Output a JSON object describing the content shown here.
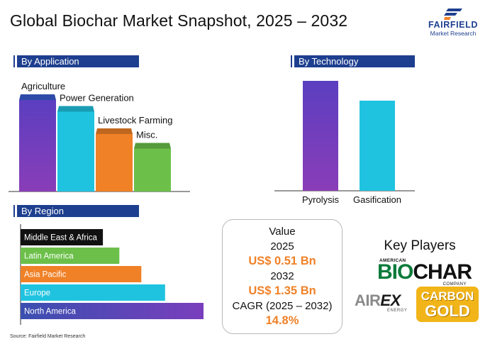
{
  "title": "Global Biochar Market Snapshot, 2025 – 2032",
  "logo": {
    "brand": "FAIRFIELD",
    "tagline": "Market Research"
  },
  "sections": {
    "application": "By Application",
    "technology": "By Technology",
    "region": "By Region"
  },
  "colors": {
    "navy": "#1e3f8f",
    "purple": "#6a3fbd",
    "cyan": "#1fc3e0",
    "orange": "#f08127",
    "green": "#6cc04a",
    "black": "#111111"
  },
  "chart_data": [
    {
      "type": "bar",
      "section": "By Application",
      "categories": [
        "Agriculture",
        "Power Generation",
        "Livestock Farming",
        "Misc."
      ],
      "values": [
        100,
        88,
        65,
        50
      ],
      "colors": [
        "purple",
        "cyan",
        "orange",
        "green"
      ],
      "ylim": [
        0,
        100
      ]
    },
    {
      "type": "bar",
      "section": "By Technology",
      "categories": [
        "Pyrolysis",
        "Gasification"
      ],
      "values": [
        100,
        82
      ],
      "colors": [
        "purple",
        "cyan"
      ],
      "ylim": [
        0,
        100
      ]
    },
    {
      "type": "bar",
      "orientation": "horizontal",
      "section": "By Region",
      "categories": [
        "Middle East & Africa",
        "Latin America",
        "Asia Pacific",
        "Europe",
        "North America"
      ],
      "values": [
        45,
        54,
        66,
        79,
        100
      ],
      "colors": [
        "black",
        "green",
        "orange",
        "cyan",
        "purple"
      ],
      "xlim": [
        0,
        100
      ]
    }
  ],
  "value_box": {
    "value_label": "Value",
    "year1": "2025",
    "value1": "US$ 0.51 Bn",
    "year2": "2032",
    "value2": "US$ 1.35 Bn",
    "cagr_label": "CAGR (2025 – 2032)",
    "cagr": "14.8%"
  },
  "key_players": {
    "title": "Key Players",
    "biochar": {
      "top": "AMERICAN",
      "part1": "BIO",
      "part2": "CHAR",
      "sub": "COMPANY"
    },
    "airex": {
      "part1": "AIR",
      "part2": "EX",
      "sub": "ENERGY"
    },
    "carbon_gold": {
      "line1": "CARBON",
      "line2": "GOLD"
    }
  },
  "source": "Source: Fairfield Market Research"
}
